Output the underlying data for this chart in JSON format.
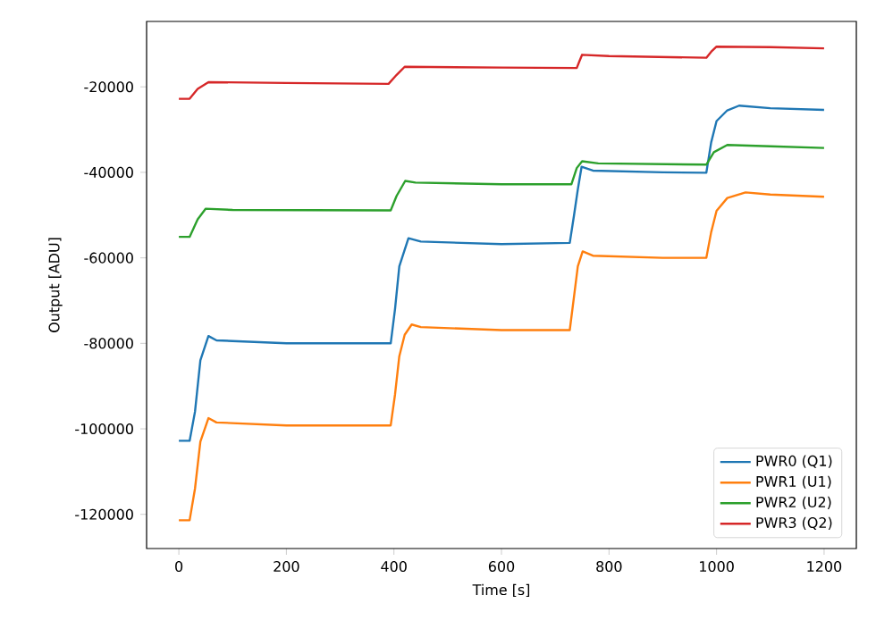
{
  "chart_data": {
    "type": "line",
    "xlabel": "Time [s]",
    "ylabel": "Output [ADU]",
    "xlim": [
      -60,
      1260
    ],
    "xticks": [
      0,
      200,
      400,
      600,
      800,
      1000,
      1200
    ],
    "ylim": [
      -128000,
      -4700
    ],
    "yticks": [
      -120000,
      -100000,
      -80000,
      -60000,
      -40000,
      -20000
    ],
    "legend": "bottom right",
    "marker": "none",
    "line_style": "solid",
    "grid": false,
    "series": [
      {
        "name": "PWR0 (Q1)",
        "color": "#1f77b4",
        "x": [
          0,
          20,
          30,
          40,
          55,
          70,
          200,
          394,
          402,
          410,
          427,
          450,
          600,
          727,
          735,
          742,
          749,
          770,
          900,
          981,
          990,
          1000,
          1020,
          1042,
          1100,
          1200
        ],
        "values": [
          -102800,
          -102800,
          -96000,
          -84000,
          -78300,
          -79300,
          -80000,
          -80000,
          -72000,
          -62000,
          -55400,
          -56200,
          -56800,
          -56500,
          -50000,
          -44000,
          -38700,
          -39600,
          -40000,
          -40100,
          -33000,
          -28000,
          -25500,
          -24400,
          -25000,
          -25400
        ]
      },
      {
        "name": "PWR1 (U1)",
        "color": "#ff7f0e",
        "x": [
          0,
          20,
          30,
          40,
          55,
          70,
          200,
          394,
          402,
          410,
          420,
          433,
          450,
          600,
          727,
          735,
          742,
          751,
          770,
          900,
          981,
          990,
          1000,
          1020,
          1054,
          1100,
          1200
        ],
        "values": [
          -121400,
          -121400,
          -114000,
          -103000,
          -97500,
          -98500,
          -99200,
          -99200,
          -92000,
          -83000,
          -78000,
          -75600,
          -76200,
          -76900,
          -76900,
          -69000,
          -62000,
          -58500,
          -59500,
          -60000,
          -60000,
          -54000,
          -49000,
          -46000,
          -44700,
          -45200,
          -45700
        ]
      },
      {
        "name": "PWR2 (U2)",
        "color": "#2ca02c",
        "x": [
          0,
          20,
          35,
          50,
          100,
          394,
          405,
          421,
          440,
          600,
          730,
          740,
          750,
          780,
          981,
          995,
          1020,
          1100,
          1200
        ],
        "values": [
          -55100,
          -55100,
          -51000,
          -48500,
          -48800,
          -48900,
          -45500,
          -42000,
          -42400,
          -42800,
          -42800,
          -39000,
          -37400,
          -37900,
          -38200,
          -35300,
          -33600,
          -33900,
          -34300
        ]
      },
      {
        "name": "PWR3 (Q2)",
        "color": "#d62728",
        "x": [
          0,
          20,
          35,
          55,
          200,
          390,
          405,
          420,
          600,
          740,
          745,
          750,
          800,
          981,
          990,
          1000,
          1100,
          1200
        ],
        "values": [
          -22800,
          -22800,
          -20500,
          -18900,
          -19100,
          -19300,
          -17200,
          -15300,
          -15500,
          -15600,
          -14000,
          -12500,
          -12800,
          -13200,
          -11800,
          -10600,
          -10700,
          -11000
        ]
      }
    ]
  }
}
